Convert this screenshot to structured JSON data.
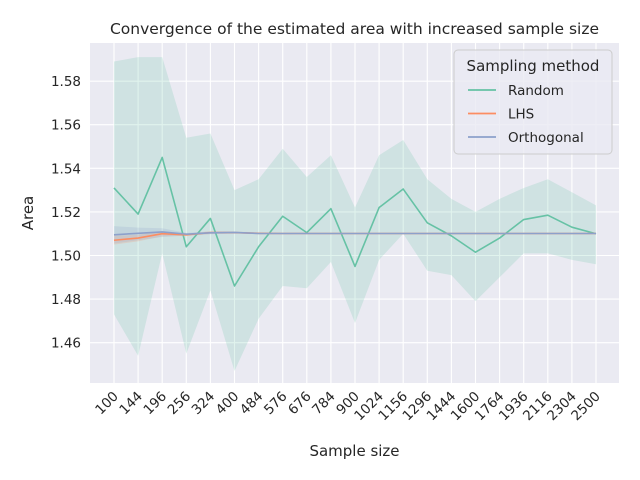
{
  "chart_data": {
    "type": "line",
    "title": "Convergence of the estimated area with increased sample size",
    "xlabel": "Sample size",
    "ylabel": "Area",
    "categories": [
      "100",
      "144",
      "196",
      "256",
      "324",
      "400",
      "484",
      "576",
      "676",
      "784",
      "900",
      "1024",
      "1156",
      "1296",
      "1444",
      "1600",
      "1764",
      "1936",
      "2116",
      "2304",
      "2500"
    ],
    "ylim": [
      1.4415,
      1.5975
    ],
    "yticks": [
      1.46,
      1.48,
      1.5,
      1.52,
      1.54,
      1.56,
      1.58
    ],
    "ytick_labels": [
      "1.46",
      "1.48",
      "1.50",
      "1.52",
      "1.54",
      "1.56",
      "1.58"
    ],
    "grid": true,
    "legend": {
      "title": "Sampling method",
      "placement": "top-right"
    },
    "series": [
      {
        "name": "Random",
        "color": "#66c2a5",
        "values": [
          1.531,
          1.519,
          1.545,
          1.504,
          1.517,
          1.486,
          1.504,
          1.518,
          1.5105,
          1.5215,
          1.495,
          1.522,
          1.5305,
          1.515,
          1.509,
          1.5015,
          1.508,
          1.5165,
          1.5185,
          1.513,
          1.51
        ],
        "ci_low": [
          1.473,
          1.454,
          1.501,
          1.455,
          1.484,
          1.447,
          1.471,
          1.486,
          1.485,
          1.497,
          1.469,
          1.498,
          1.51,
          1.493,
          1.491,
          1.479,
          1.49,
          1.501,
          1.501,
          1.498,
          1.496
        ],
        "ci_high": [
          1.589,
          1.591,
          1.591,
          1.554,
          1.556,
          1.53,
          1.535,
          1.549,
          1.536,
          1.546,
          1.522,
          1.546,
          1.553,
          1.535,
          1.526,
          1.52,
          1.526,
          1.531,
          1.535,
          1.529,
          1.523
        ]
      },
      {
        "name": "LHS",
        "color": "#fc8d62",
        "values": [
          1.507,
          1.508,
          1.51,
          1.5095,
          1.5105,
          1.5105,
          1.5102,
          1.5101,
          1.5101,
          1.5101,
          1.5101,
          1.5101,
          1.5101,
          1.5101,
          1.5101,
          1.5101,
          1.5101,
          1.5101,
          1.5101,
          1.5101,
          1.5101
        ],
        "ci_low": [
          1.505,
          1.5065,
          1.5088,
          1.509,
          1.5098,
          1.51,
          1.5098,
          1.5098,
          1.5099,
          1.5099,
          1.5099,
          1.5099,
          1.5099,
          1.5099,
          1.5099,
          1.5099,
          1.5099,
          1.5099,
          1.5099,
          1.5099,
          1.5099
        ],
        "ci_high": [
          1.509,
          1.5095,
          1.5112,
          1.51,
          1.5112,
          1.511,
          1.5106,
          1.5104,
          1.5103,
          1.5103,
          1.5103,
          1.5103,
          1.5103,
          1.5103,
          1.5103,
          1.5103,
          1.5103,
          1.5103,
          1.5103,
          1.5103,
          1.5103
        ]
      },
      {
        "name": "Orthogonal",
        "color": "#8da0cb",
        "values": [
          1.5095,
          1.5102,
          1.5108,
          1.5098,
          1.5104,
          1.5106,
          1.5101,
          1.5101,
          1.5101,
          1.5101,
          1.5101,
          1.5101,
          1.5101,
          1.5101,
          1.5101,
          1.5101,
          1.5101,
          1.5101,
          1.5101,
          1.5101,
          1.5101
        ],
        "ci_low": [
          1.5055,
          1.507,
          1.5085,
          1.5092,
          1.5098,
          1.5102,
          1.5099,
          1.5099,
          1.5099,
          1.5099,
          1.5099,
          1.5099,
          1.5099,
          1.5099,
          1.5099,
          1.5099,
          1.5099,
          1.5099,
          1.5099,
          1.5099,
          1.5099
        ],
        "ci_high": [
          1.5135,
          1.5128,
          1.5125,
          1.5104,
          1.511,
          1.511,
          1.5103,
          1.5103,
          1.5103,
          1.5103,
          1.5103,
          1.5103,
          1.5103,
          1.5103,
          1.5103,
          1.5103,
          1.5103,
          1.5103,
          1.5103,
          1.5103,
          1.5103
        ]
      }
    ]
  }
}
